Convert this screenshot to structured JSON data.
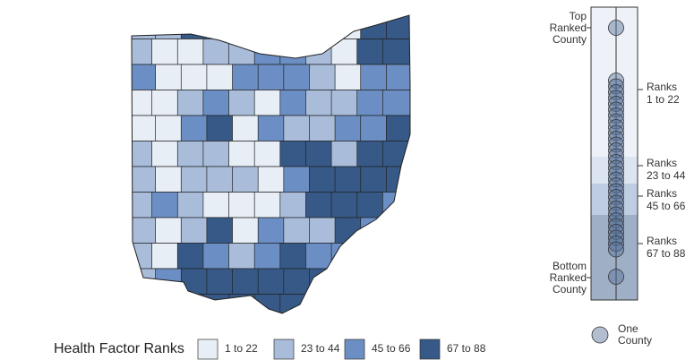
{
  "legend": {
    "title": "Health Factor Ranks",
    "items": [
      {
        "label": "1 to 22",
        "color": "#e8eef6"
      },
      {
        "label": "23 to 44",
        "color": "#a9bddb"
      },
      {
        "label": "45 to 66",
        "color": "#6b8fc4"
      },
      {
        "label": "67 to 88",
        "color": "#365987"
      }
    ]
  },
  "side_panel": {
    "top_label": [
      "Top",
      "Ranked",
      "County"
    ],
    "ranges": [
      [
        "Ranks",
        "1 to 22"
      ],
      [
        "Ranks",
        "23 to 44"
      ],
      [
        "Ranks",
        "45 to 66"
      ],
      [
        "Ranks",
        "67 to 88"
      ]
    ],
    "bottom_label": [
      "Bottom",
      "Ranked",
      "County"
    ],
    "key_label": [
      "One",
      "County"
    ]
  }
}
